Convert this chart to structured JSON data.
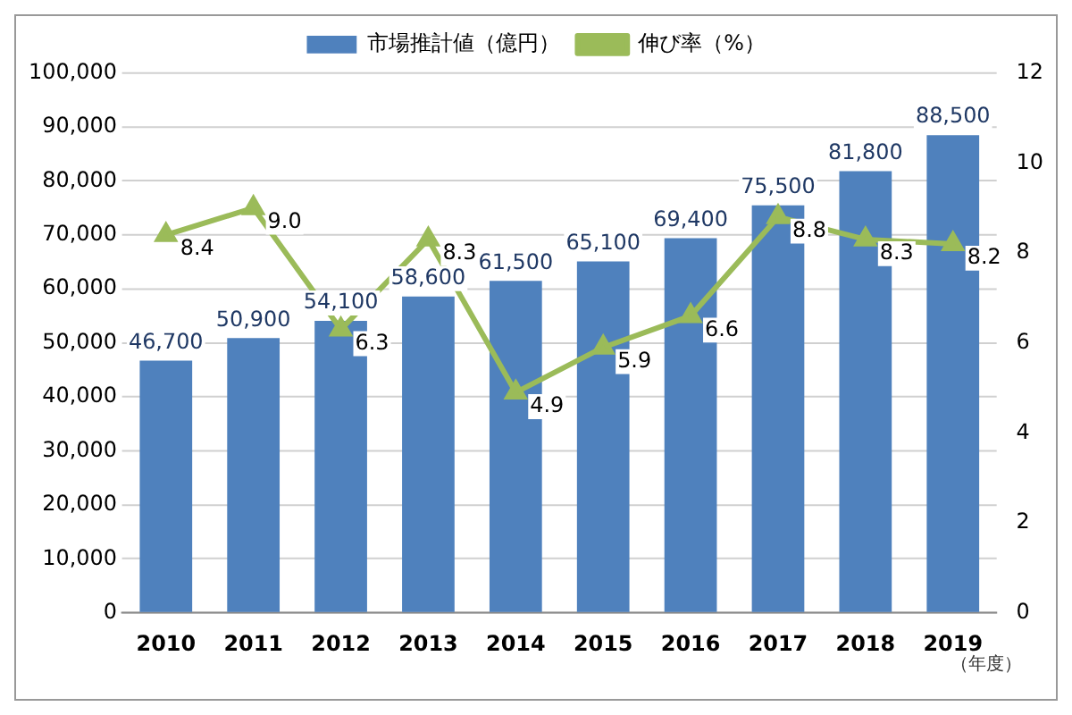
{
  "chart_data": {
    "type": "bar",
    "categories": [
      "2010",
      "2011",
      "2012",
      "2013",
      "2014",
      "2015",
      "2016",
      "2017",
      "2018",
      "2019"
    ],
    "series": [
      {
        "name": "市場推計値（億円）",
        "color": "#4f81bd",
        "values": [
          46700,
          50900,
          54100,
          58600,
          61500,
          65100,
          69400,
          75500,
          81800,
          88500
        ],
        "value_labels": [
          "46,700",
          "50,900",
          "54,100",
          "58,600",
          "61,500",
          "65,100",
          "69,400",
          "75,500",
          "81,800",
          "88,500"
        ]
      },
      {
        "name": "伸び率（%）",
        "type": "line",
        "axis": "y2",
        "color": "#9bbb59",
        "marker": "triangle",
        "values": [
          8.4,
          9.0,
          6.3,
          8.3,
          4.9,
          5.9,
          6.6,
          8.8,
          8.3,
          8.2
        ],
        "value_labels": [
          "8.4",
          "9.0",
          "6.3",
          "8.3",
          "4.9",
          "5.9",
          "6.6",
          "8.8",
          "8.3",
          "8.2"
        ]
      }
    ],
    "ylim": [
      0,
      100000
    ],
    "yticks": [
      {
        "value": 0,
        "label": "0"
      },
      {
        "value": 10000,
        "label": "10,000"
      },
      {
        "value": 20000,
        "label": "20,000"
      },
      {
        "value": 30000,
        "label": "30,000"
      },
      {
        "value": 40000,
        "label": "40,000"
      },
      {
        "value": 50000,
        "label": "50,000"
      },
      {
        "value": 60000,
        "label": "60,000"
      },
      {
        "value": 70000,
        "label": "70,000"
      },
      {
        "value": 80000,
        "label": "80,000"
      },
      {
        "value": 90000,
        "label": "90,000"
      },
      {
        "value": 100000,
        "label": "100,000"
      }
    ],
    "y2lim": [
      0,
      12
    ],
    "y2ticks": [
      0,
      2,
      4,
      6,
      8,
      10,
      12
    ],
    "grid": "y",
    "legend": "top",
    "annotations": [
      "（年度）"
    ]
  }
}
